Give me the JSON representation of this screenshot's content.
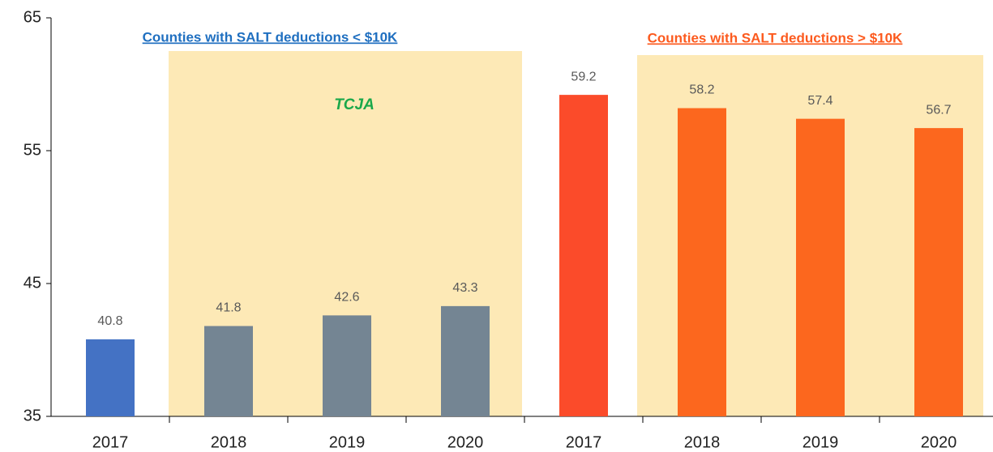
{
  "chart_data": {
    "type": "bar",
    "annotations": [
      "Counties with SALT deductions < $10K",
      "Counties with SALT deductions > $10K",
      "TCJA"
    ],
    "categories": [
      "2017",
      "2018",
      "2019",
      "2020",
      "2017",
      "2018",
      "2019",
      "2020"
    ],
    "values": [
      40.8,
      41.8,
      42.6,
      43.3,
      59.2,
      58.2,
      57.4,
      56.7
    ],
    "colors": [
      "#4472c4",
      "#748593",
      "#748593",
      "#748593",
      "#fb4b2a",
      "#fc671e",
      "#fc671e",
      "#fc671e"
    ],
    "ylim": [
      35,
      65
    ],
    "yticks": [
      35,
      45,
      55,
      65
    ],
    "grid": false
  }
}
